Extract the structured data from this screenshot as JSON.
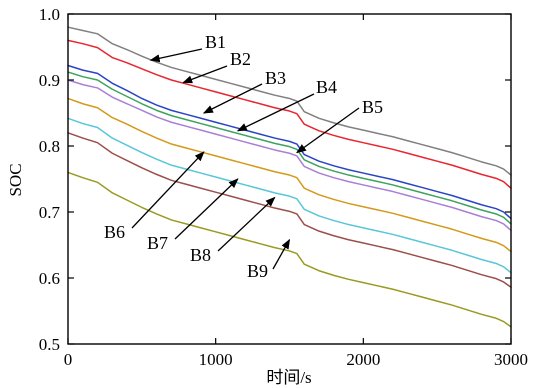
{
  "chart_data": {
    "type": "line",
    "title": "",
    "xlabel": "时间/s",
    "ylabel": "SOC",
    "xlim": [
      0,
      3000
    ],
    "ylim": [
      0.5,
      1.0
    ],
    "xticks": [
      0,
      1000,
      2000,
      3000
    ],
    "yticks": [
      0.5,
      0.6,
      0.7,
      0.8,
      0.9,
      1.0
    ],
    "xtick_labels": [
      "0",
      "1000",
      "2000",
      "3000"
    ],
    "ytick_labels": [
      "0.5",
      "0.6",
      "0.7",
      "0.8",
      "0.9",
      "1.0"
    ],
    "grid": false,
    "legend": "none",
    "x": [
      0,
      100,
      200,
      300,
      400,
      500,
      600,
      700,
      800,
      900,
      1000,
      1100,
      1200,
      1300,
      1400,
      1500,
      1550,
      1600,
      1700,
      1800,
      1900,
      2000,
      2100,
      2200,
      2300,
      2400,
      2500,
      2600,
      2700,
      2800,
      2900,
      2950,
      3000
    ],
    "series": [
      {
        "name": "B1",
        "color": "#808080",
        "values": [
          0.98,
          0.975,
          0.97,
          0.955,
          0.946,
          0.936,
          0.927,
          0.919,
          0.913,
          0.907,
          0.901,
          0.895,
          0.889,
          0.883,
          0.877,
          0.872,
          0.868,
          0.852,
          0.842,
          0.835,
          0.829,
          0.824,
          0.819,
          0.814,
          0.808,
          0.802,
          0.796,
          0.79,
          0.783,
          0.776,
          0.77,
          0.765,
          0.756
        ]
      },
      {
        "name": "B2",
        "color": "#e8262f",
        "values": [
          0.96,
          0.955,
          0.949,
          0.934,
          0.926,
          0.917,
          0.908,
          0.9,
          0.894,
          0.888,
          0.882,
          0.876,
          0.87,
          0.864,
          0.858,
          0.853,
          0.849,
          0.833,
          0.823,
          0.816,
          0.81,
          0.805,
          0.8,
          0.795,
          0.789,
          0.783,
          0.777,
          0.771,
          0.764,
          0.757,
          0.751,
          0.746,
          0.736
        ]
      },
      {
        "name": "B3",
        "color": "#2a45c4",
        "values": [
          0.922,
          0.915,
          0.91,
          0.895,
          0.884,
          0.872,
          0.862,
          0.854,
          0.848,
          0.842,
          0.836,
          0.83,
          0.824,
          0.818,
          0.812,
          0.807,
          0.803,
          0.787,
          0.777,
          0.77,
          0.764,
          0.759,
          0.754,
          0.749,
          0.743,
          0.737,
          0.731,
          0.725,
          0.718,
          0.711,
          0.705,
          0.7,
          0.69
        ]
      },
      {
        "name": "B4",
        "color": "#3ea35a",
        "values": [
          0.912,
          0.905,
          0.9,
          0.886,
          0.875,
          0.864,
          0.854,
          0.846,
          0.84,
          0.834,
          0.828,
          0.822,
          0.816,
          0.81,
          0.804,
          0.799,
          0.795,
          0.779,
          0.769,
          0.762,
          0.756,
          0.751,
          0.746,
          0.741,
          0.735,
          0.729,
          0.723,
          0.717,
          0.71,
          0.703,
          0.697,
          0.692,
          0.682
        ]
      },
      {
        "name": "B5",
        "color": "#a97fd6",
        "values": [
          0.9,
          0.893,
          0.888,
          0.874,
          0.864,
          0.854,
          0.844,
          0.836,
          0.83,
          0.824,
          0.818,
          0.812,
          0.806,
          0.8,
          0.794,
          0.789,
          0.785,
          0.769,
          0.759,
          0.752,
          0.746,
          0.741,
          0.736,
          0.731,
          0.725,
          0.719,
          0.713,
          0.707,
          0.7,
          0.693,
          0.687,
          0.682,
          0.672
        ]
      },
      {
        "name": "B6",
        "color": "#d39a1a",
        "values": [
          0.872,
          0.864,
          0.858,
          0.843,
          0.833,
          0.822,
          0.812,
          0.803,
          0.797,
          0.791,
          0.785,
          0.779,
          0.773,
          0.767,
          0.761,
          0.756,
          0.752,
          0.736,
          0.726,
          0.719,
          0.713,
          0.708,
          0.703,
          0.698,
          0.692,
          0.686,
          0.68,
          0.674,
          0.667,
          0.66,
          0.654,
          0.649,
          0.64
        ]
      },
      {
        "name": "B7",
        "color": "#59c6d9",
        "values": [
          0.842,
          0.834,
          0.828,
          0.812,
          0.801,
          0.79,
          0.78,
          0.771,
          0.765,
          0.759,
          0.753,
          0.747,
          0.741,
          0.735,
          0.729,
          0.724,
          0.72,
          0.704,
          0.694,
          0.687,
          0.681,
          0.676,
          0.671,
          0.666,
          0.66,
          0.654,
          0.648,
          0.642,
          0.635,
          0.628,
          0.622,
          0.617,
          0.608
        ]
      },
      {
        "name": "B8",
        "color": "#9b4f4a",
        "values": [
          0.82,
          0.812,
          0.805,
          0.789,
          0.778,
          0.767,
          0.757,
          0.748,
          0.742,
          0.736,
          0.73,
          0.724,
          0.718,
          0.712,
          0.706,
          0.701,
          0.697,
          0.681,
          0.671,
          0.664,
          0.658,
          0.653,
          0.648,
          0.643,
          0.637,
          0.631,
          0.625,
          0.619,
          0.612,
          0.605,
          0.599,
          0.594,
          0.586
        ]
      },
      {
        "name": "B9",
        "color": "#9a9a22",
        "values": [
          0.76,
          0.752,
          0.745,
          0.729,
          0.718,
          0.707,
          0.697,
          0.688,
          0.682,
          0.676,
          0.67,
          0.664,
          0.658,
          0.652,
          0.646,
          0.641,
          0.637,
          0.621,
          0.611,
          0.604,
          0.598,
          0.593,
          0.588,
          0.583,
          0.577,
          0.571,
          0.565,
          0.559,
          0.552,
          0.545,
          0.539,
          0.534,
          0.526
        ]
      }
    ],
    "annotations": [
      {
        "text": "B1",
        "series": "B1",
        "x": 560,
        "y": 0.93
      },
      {
        "text": "B2",
        "series": "B2",
        "x": 780,
        "y": 0.896
      },
      {
        "text": "B3",
        "series": "B3",
        "x": 920,
        "y": 0.85
      },
      {
        "text": "B4",
        "series": "B4",
        "x": 1150,
        "y": 0.823
      },
      {
        "text": "B5",
        "series": "B5",
        "x": 1550,
        "y": 0.79
      },
      {
        "text": "B6",
        "series": "B6",
        "x": 920,
        "y": 0.791
      },
      {
        "text": "B7",
        "series": "B7",
        "x": 1150,
        "y": 0.75
      },
      {
        "text": "B8",
        "series": "B8",
        "x": 1400,
        "y": 0.722
      },
      {
        "text": "B9",
        "series": "B9",
        "x": 1500,
        "y": 0.658
      }
    ]
  }
}
